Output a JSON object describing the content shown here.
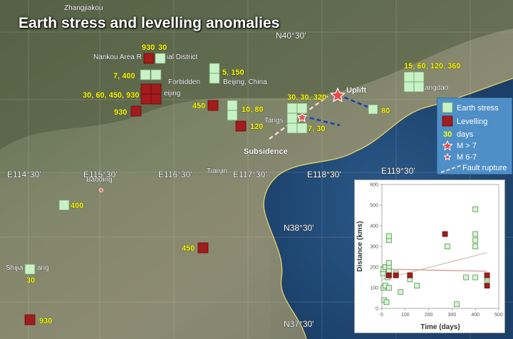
{
  "title": "Earth stress and levelling anomalies",
  "colors": {
    "earth_stress": "#c8f2c6",
    "levelling": "#a31b1b",
    "label_yellow": "#ffff00",
    "fault": "#1a3cbf",
    "legend_bg": "#4f8fc7"
  },
  "place_names": [
    "Zhangjiakou",
    "Nankou Area R",
    "ial District",
    "Forbidden",
    "Beijing, China",
    "eijing",
    "Tangs",
    "Tianjin",
    "angdao",
    "Baoding",
    "Shijia",
    "ang"
  ],
  "grid_labels": [
    "N40°30'",
    "E114°30'",
    "E115°30'",
    "E116°30'",
    "E117°30'",
    "E118°30'",
    "E119°30'",
    "N38°30'",
    "N37°30'"
  ],
  "annotations": [
    "Uplift",
    "Subsidence"
  ],
  "marker_labels": [
    "930",
    "30",
    "7, 400",
    "30, 60, 450, 930",
    "930",
    "5, 150",
    "450",
    "10, 80",
    "120",
    "30, 30, 320",
    "7, 30",
    "80",
    "15, 60, 120, 360",
    "400",
    "450",
    "30",
    "930"
  ],
  "legend": {
    "earth_stress": "Earth stress",
    "levelling": "Levelling",
    "days": "30",
    "days_unit": "days",
    "m7": "M > 7",
    "m67": "M 6-7",
    "fault": "Fault rupture"
  },
  "chart_data": {
    "type": "scatter",
    "xlabel": "Time (days)",
    "ylabel": "Distance (kms)",
    "xlim": [
      0,
      500
    ],
    "ylim": [
      0,
      600
    ],
    "xticks": [
      0,
      100,
      200,
      300,
      400,
      500
    ],
    "yticks": [
      0,
      100,
      200,
      300,
      400,
      500,
      600
    ],
    "series": [
      {
        "marker": "earth-stress",
        "points": [
          [
            5,
            170
          ],
          [
            7,
            100
          ],
          [
            7,
            190
          ],
          [
            10,
            40
          ],
          [
            15,
            110
          ],
          [
            15,
            200
          ],
          [
            20,
            30
          ],
          [
            25,
            150
          ],
          [
            30,
            330
          ],
          [
            30,
            350
          ],
          [
            30,
            200
          ],
          [
            30,
            180
          ],
          [
            30,
            100
          ],
          [
            30,
            220
          ],
          [
            60,
            170
          ],
          [
            80,
            80
          ],
          [
            120,
            140
          ],
          [
            150,
            110
          ],
          [
            280,
            300
          ],
          [
            320,
            20
          ],
          [
            360,
            150
          ],
          [
            400,
            480
          ],
          [
            400,
            360
          ],
          [
            400,
            330
          ],
          [
            400,
            300
          ],
          [
            400,
            150
          ],
          [
            450,
            140
          ],
          [
            450,
            150
          ]
        ]
      },
      {
        "marker": "levelling",
        "points": [
          [
            30,
            160
          ],
          [
            60,
            160
          ],
          [
            120,
            160
          ],
          [
            270,
            360
          ],
          [
            450,
            160
          ],
          [
            450,
            110
          ]
        ]
      }
    ],
    "trendlines": [
      {
        "marker": "earth-stress",
        "from": [
          0,
          140
        ],
        "to": [
          450,
          270
        ]
      },
      {
        "marker": "levelling",
        "from": [
          0,
          190
        ],
        "to": [
          450,
          180
        ]
      }
    ]
  }
}
